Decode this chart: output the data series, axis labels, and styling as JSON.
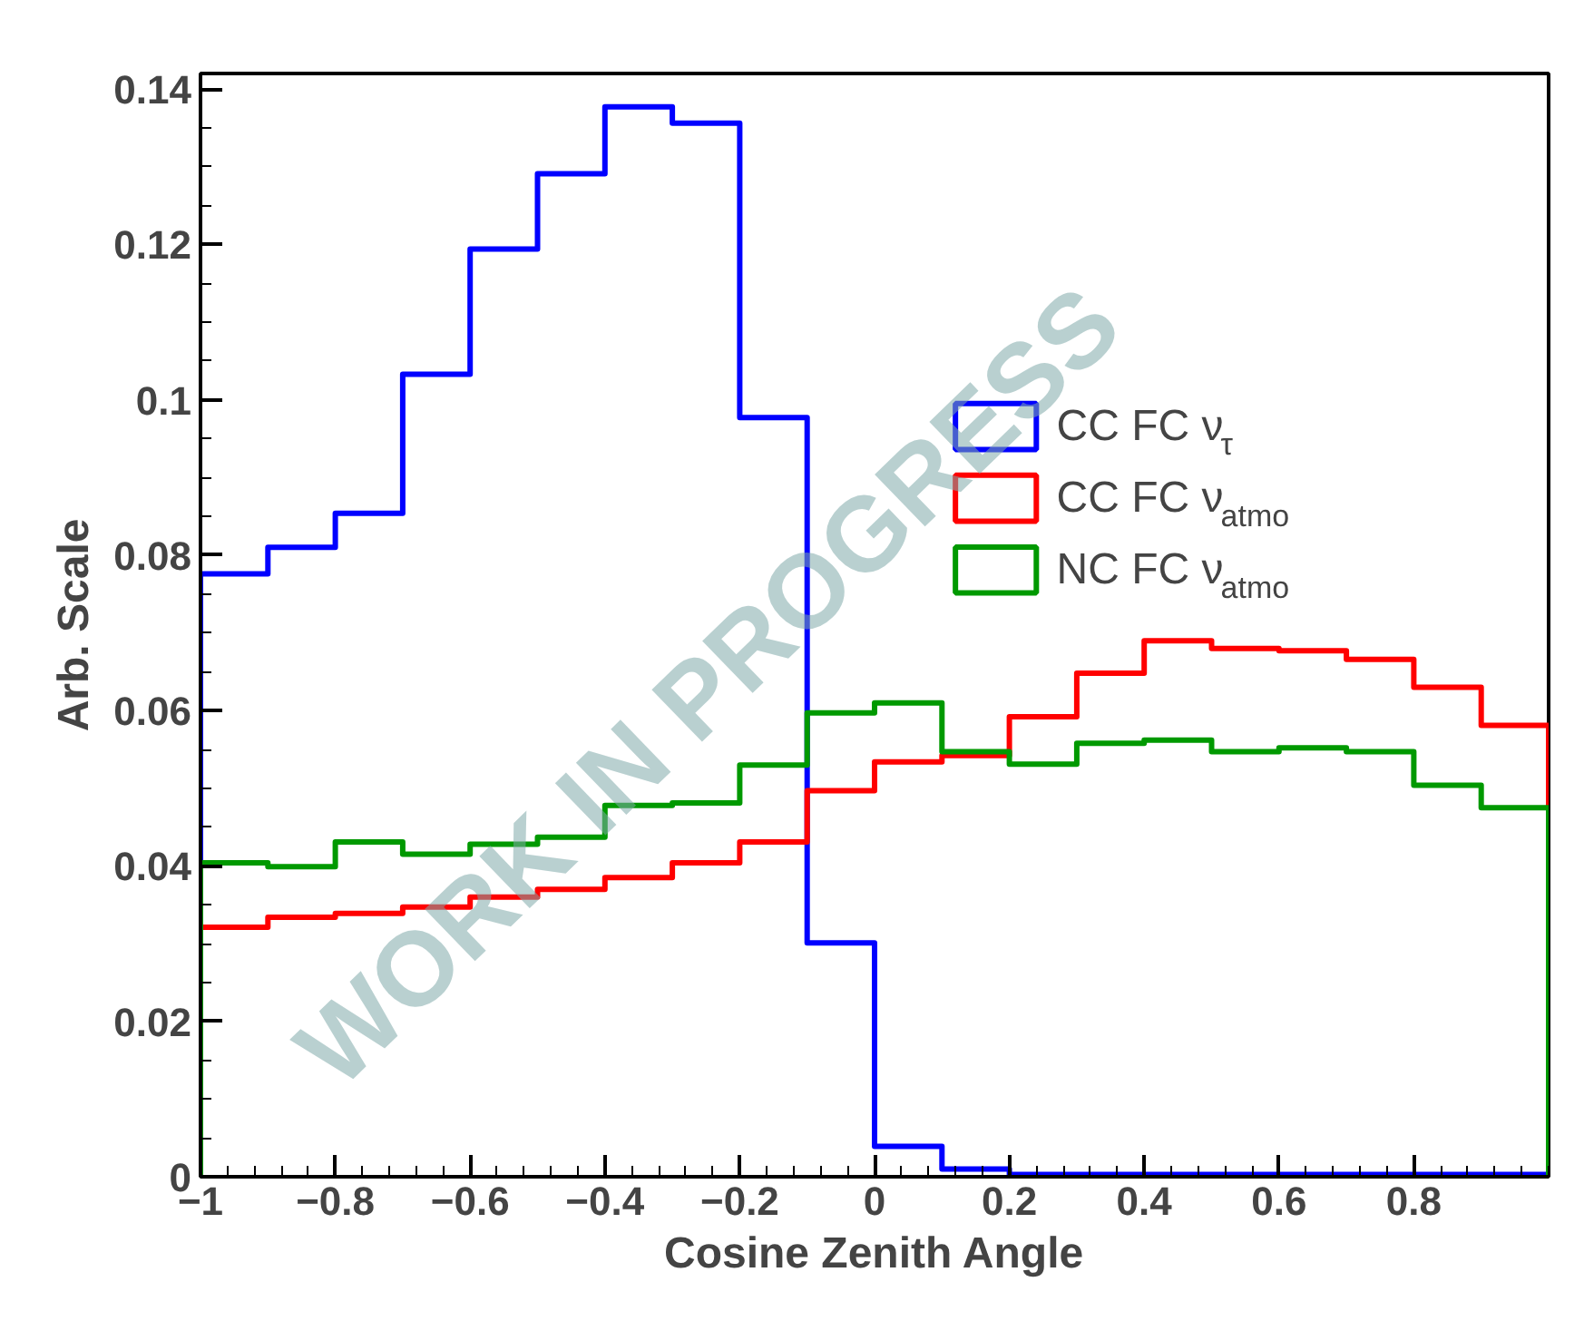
{
  "chart_data": {
    "type": "histogram",
    "xlabel": "Cosine Zenith Angle",
    "ylabel": "Arb. Scale",
    "bins": [
      -1,
      -0.9,
      -0.8,
      -0.7,
      -0.6,
      -0.5,
      -0.4,
      -0.3,
      -0.2,
      -0.1,
      0,
      0.1,
      0.2,
      0.3,
      0.4,
      0.5,
      0.6,
      0.7,
      0.8,
      0.9,
      1
    ],
    "series": [
      {
        "name": "CC FC ν$_{τ}$",
        "color": "#0000ff",
        "values": [
          0.0776,
          0.081,
          0.0854,
          0.1033,
          0.1194,
          0.1291,
          0.1377,
          0.1356,
          0.0977,
          0.0301,
          0.0039,
          0.001,
          0.0003,
          0.0003,
          0.0003,
          0.0003,
          0.0003,
          0.0003,
          0.0003,
          0.0003
        ]
      },
      {
        "name": "CC FC ν$_{atmo}$",
        "color": "#ff0000",
        "values": [
          0.0321,
          0.0334,
          0.0339,
          0.0347,
          0.036,
          0.037,
          0.0385,
          0.0404,
          0.0431,
          0.0497,
          0.0534,
          0.0542,
          0.0592,
          0.0648,
          0.069,
          0.068,
          0.0677,
          0.0666,
          0.063,
          0.0581
        ]
      },
      {
        "name": "NC FC ν$_{atmo}$",
        "color": "#009900",
        "values": [
          0.0404,
          0.0399,
          0.0431,
          0.0415,
          0.0428,
          0.0437,
          0.0478,
          0.0481,
          0.053,
          0.0597,
          0.061,
          0.0547,
          0.0531,
          0.0558,
          0.0562,
          0.0547,
          0.0552,
          0.0547,
          0.0504,
          0.0475
        ]
      }
    ],
    "xlim": [
      -1,
      1
    ],
    "ylim": [
      0,
      0.142
    ],
    "xticks": [
      -1,
      -0.8,
      -0.6,
      -0.4,
      -0.2,
      0,
      0.2,
      0.4,
      0.6,
      0.8
    ],
    "yticks": [
      0,
      0.02,
      0.04,
      0.06,
      0.08,
      0.1,
      0.12,
      0.14
    ],
    "legend": "top right",
    "annotations": [
      "WORK IN PROGRESS"
    ]
  }
}
